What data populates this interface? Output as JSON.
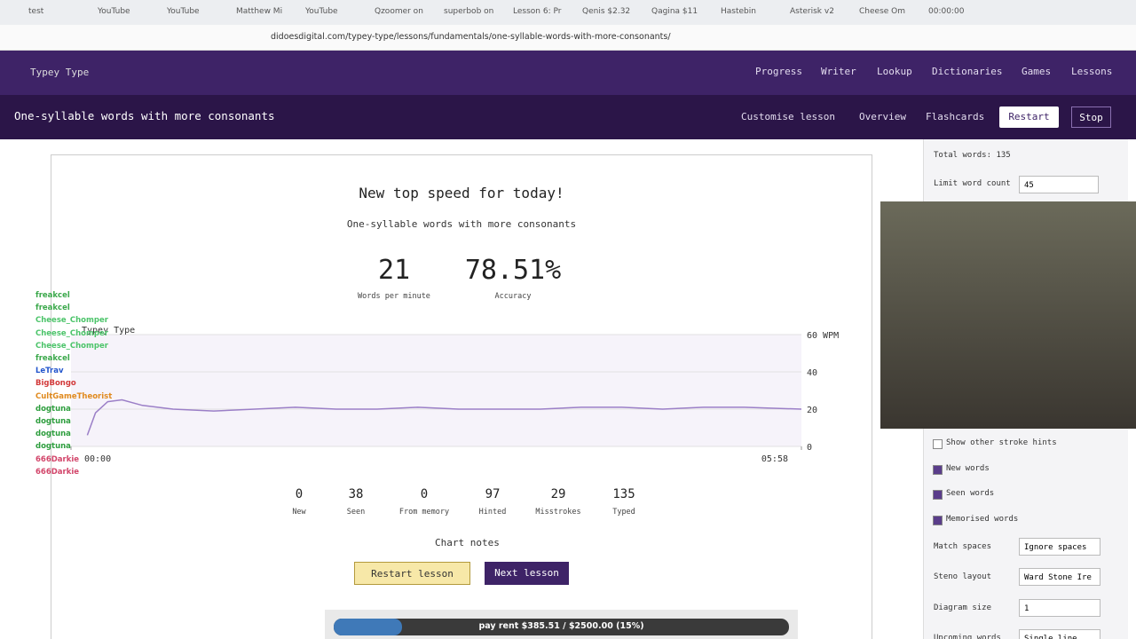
{
  "browser": {
    "tabs": [
      "test",
      "YouTube",
      "YouTube",
      "Matthew Mi",
      "YouTube",
      "Qzoomer on",
      "superbob on",
      "Lesson 6: Pr",
      "Qenis $2.32",
      "Qagina $11",
      "Hastebin",
      "Asterisk v2",
      "Cheese Om",
      "00:00:00"
    ],
    "url": "didoesdigital.com/typey-type/lessons/fundamentals/one-syllable-words-with-more-consonants/"
  },
  "nav": {
    "brand": "Typey Type",
    "links": [
      "Progress",
      "Writer",
      "Lookup",
      "Dictionaries",
      "Games",
      "Lessons"
    ]
  },
  "lesson_bar": {
    "title": "One-syllable words with more consonants",
    "links": [
      "Customise lesson",
      "Overview",
      "Flashcards"
    ],
    "buttons": [
      "Restart",
      "Stop"
    ]
  },
  "results": {
    "heading": "New top speed for today!",
    "subtitle": "One-syllable words with more consonants",
    "stats": [
      {
        "value": "21",
        "label": "Words per minute"
      },
      {
        "value": "78.51%",
        "label": "Accuracy"
      }
    ],
    "counts": [
      {
        "value": "0",
        "label": "New"
      },
      {
        "value": "38",
        "label": "Seen"
      },
      {
        "value": "0",
        "label": "From memory"
      },
      {
        "value": "97",
        "label": "Hinted"
      },
      {
        "value": "29",
        "label": "Misstrokes"
      },
      {
        "value": "135",
        "label": "Typed"
      }
    ],
    "chart_notes": "Chart notes",
    "buttons": [
      "Restart lesson",
      "Next lesson"
    ]
  },
  "wpm_chart": {
    "type": "line",
    "watermark": "Typey Type",
    "color": "#9b7fc7",
    "x": [
      8,
      12,
      18,
      25,
      35,
      50,
      70,
      90,
      110,
      130,
      150,
      170,
      190,
      210,
      230,
      250,
      270,
      290,
      310,
      330,
      358
    ],
    "values": [
      6,
      18,
      24,
      25,
      22,
      20,
      19,
      20,
      21,
      20,
      20,
      21,
      20,
      20,
      20,
      21,
      21,
      20,
      21,
      21,
      20
    ],
    "xlim": [
      0,
      358
    ],
    "xticks": [
      {
        "value": 0,
        "label": "00:00"
      },
      {
        "value": 358,
        "label": "05:58"
      }
    ],
    "ylim": [
      0,
      60
    ],
    "yticks": [
      {
        "value": 60,
        "label": "60 WPM"
      },
      40,
      20,
      0
    ]
  },
  "sidebar": {
    "total_words": "Total words: 135",
    "limit_label": "Limit word count",
    "limit_value": "45",
    "checkboxes": [
      {
        "label": "Show other stroke hints",
        "checked": false
      },
      {
        "label": "New words",
        "checked": true
      },
      {
        "label": "Seen words",
        "checked": true
      },
      {
        "label": "Memorised words",
        "checked": true
      }
    ],
    "selects": [
      {
        "label": "Match spaces",
        "value": "Ignore spaces"
      },
      {
        "label": "Steno layout",
        "value": "Ward Stone Ire"
      },
      {
        "label": "Diagram size",
        "value": "1"
      },
      {
        "label": "Upcoming words",
        "value": "Single line"
      }
    ]
  },
  "chat": [
    {
      "name": "freakcel",
      "color": "#3aa84a"
    },
    {
      "name": "freakcel",
      "color": "#3aa84a"
    },
    {
      "name": "Cheese_Chomper",
      "color": "#4cc46a"
    },
    {
      "name": "Cheese_Chomper",
      "color": "#4cc46a"
    },
    {
      "name": "Cheese_Chomper",
      "color": "#4cc46a"
    },
    {
      "name": "freakcel",
      "color": "#3aa84a"
    },
    {
      "name": "LeTrav",
      "color": "#2255cc"
    },
    {
      "name": "BigBongo",
      "color": "#d23a3a"
    },
    {
      "name": "CultGameTheorist",
      "color": "#e08a1e"
    },
    {
      "name": "dogtuna",
      "color": "#2e9e3e"
    },
    {
      "name": "dogtuna",
      "color": "#2e9e3e"
    },
    {
      "name": "dogtuna",
      "color": "#2e9e3e"
    },
    {
      "name": "dogtuna",
      "color": "#2e9e3e"
    },
    {
      "name": "666Darkie",
      "color": "#d2456a"
    },
    {
      "name": "666Darkie",
      "color": "#d2456a"
    }
  ],
  "donation": {
    "text": "pay rent $385.51 / $2500.00 (15%)",
    "percent": 15
  }
}
